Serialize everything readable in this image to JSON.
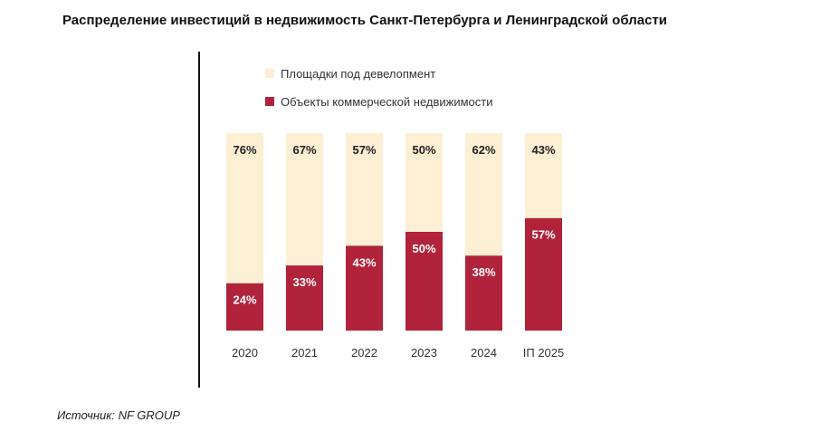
{
  "title": "Распределение инвестиций в недвижимость Санкт-Петербурга и Ленинградской области",
  "source": "Источник: NF GROUP",
  "chart_data": {
    "type": "bar",
    "stacked": true,
    "percent": true,
    "categories": [
      "2020",
      "2021",
      "2022",
      "2023",
      "2024",
      "IП 2025"
    ],
    "series": [
      {
        "name": "Объекты коммерческой недвижимости",
        "values": [
          24,
          33,
          43,
          50,
          38,
          57
        ],
        "color": "#b0233a",
        "label_color": "#ffffff"
      },
      {
        "name": "Площадки под девелопмент",
        "values": [
          76,
          67,
          57,
          50,
          62,
          43
        ],
        "color": "#fdefd4",
        "label_color": "#222222"
      }
    ],
    "legend_order": [
      1,
      0
    ],
    "legend_position": "top",
    "ylim": [
      0,
      100
    ],
    "grid": false
  }
}
